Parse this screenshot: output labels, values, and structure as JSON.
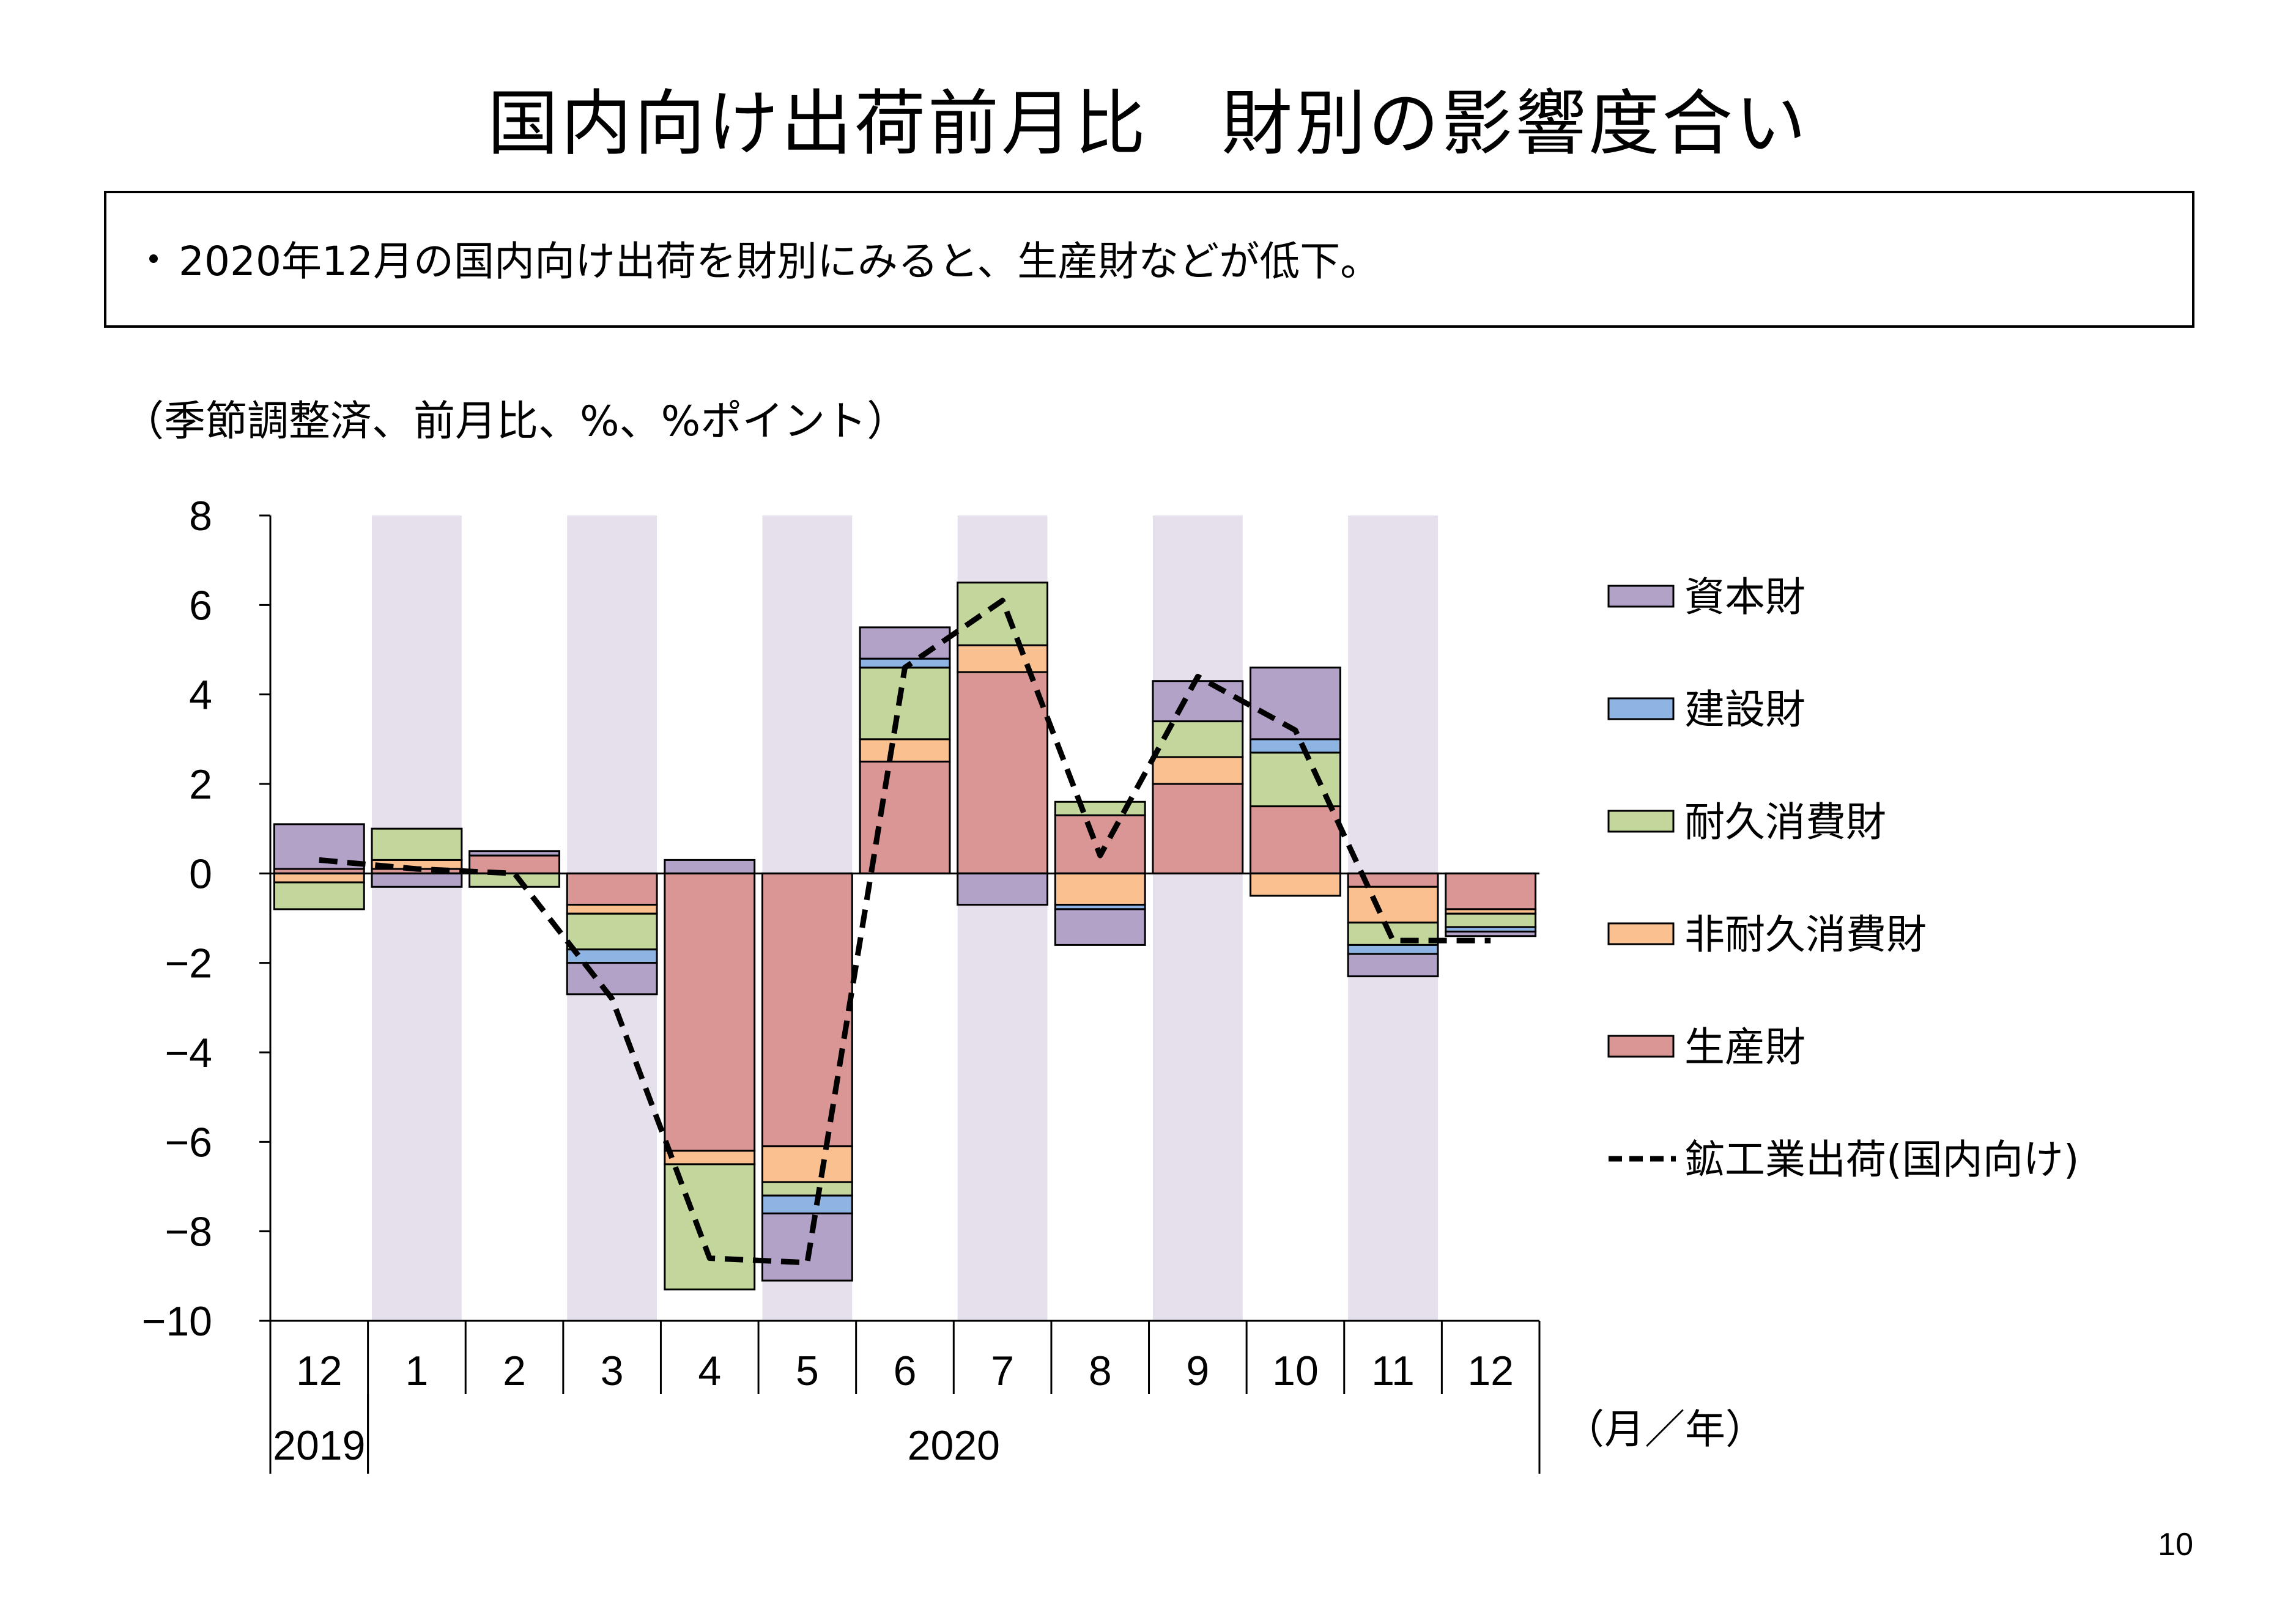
{
  "title": "国内向け出荷前月比　財別の影響度合い",
  "summary": {
    "bullet": "・",
    "text": "2020年12月の国内向け出荷を財別にみると、生産財などが低下。"
  },
  "units_note": "（季節調整済、前月比、%、%ポイント）",
  "page_number": "10",
  "colors": {
    "capital": "#b3a2c7",
    "construction": "#8eb4e3",
    "durable": "#c3d69b",
    "nondurable": "#fac090",
    "producer": "#d99694",
    "shade": "#e6e0ec",
    "line": "#000000"
  },
  "chart_data": {
    "type": "bar",
    "stacked": true,
    "categories": [
      "12",
      "1",
      "2",
      "3",
      "4",
      "5",
      "6",
      "7",
      "8",
      "9",
      "10",
      "11",
      "12"
    ],
    "year_labels": [
      {
        "label": "2019",
        "from": 0,
        "to": 0
      },
      {
        "label": "2020",
        "from": 1,
        "to": 12
      }
    ],
    "x_unit_label": "（月／年）",
    "ylim": [
      -10,
      8
    ],
    "yticks": [
      8,
      6,
      4,
      2,
      0,
      -2,
      -4,
      -6,
      -8,
      -10
    ],
    "shaded_categories": [
      1,
      3,
      5,
      7,
      9,
      11
    ],
    "series": [
      {
        "name": "生産財",
        "key": "producer",
        "values": [
          0.1,
          0.1,
          0.4,
          -0.7,
          -6.2,
          -6.1,
          2.5,
          4.5,
          1.3,
          2.0,
          1.5,
          -0.3,
          -0.8
        ]
      },
      {
        "name": "非耐久消費財",
        "key": "nondurable",
        "values": [
          -0.2,
          0.2,
          0.0,
          -0.2,
          -0.3,
          -0.8,
          0.5,
          0.6,
          -0.7,
          0.6,
          -0.5,
          -0.8,
          -0.1
        ]
      },
      {
        "name": "耐久消費財",
        "key": "durable",
        "values": [
          -0.6,
          0.7,
          -0.3,
          -0.8,
          -2.8,
          -0.3,
          1.6,
          1.4,
          0.3,
          0.8,
          1.2,
          -0.5,
          -0.3
        ]
      },
      {
        "name": "建設財",
        "key": "construction",
        "values": [
          0.0,
          0.0,
          0.0,
          -0.3,
          0.0,
          -0.4,
          0.2,
          0.0,
          -0.1,
          0.0,
          0.3,
          -0.2,
          -0.1
        ]
      },
      {
        "name": "資本財",
        "key": "capital",
        "values": [
          1.0,
          -0.3,
          0.1,
          -0.7,
          0.3,
          -1.5,
          0.7,
          -0.7,
          -0.8,
          0.9,
          1.6,
          -0.5,
          -0.1
        ]
      }
    ],
    "line_series": {
      "name": "鉱工業出荷(国内向け)",
      "values": [
        0.3,
        0.1,
        0.0,
        -2.8,
        -8.6,
        -8.7,
        4.6,
        6.1,
        0.4,
        4.4,
        3.2,
        -1.5,
        -1.5
      ]
    },
    "legend": [
      {
        "key": "capital",
        "label": "資本財"
      },
      {
        "key": "construction",
        "label": "建設財"
      },
      {
        "key": "durable",
        "label": "耐久消費財"
      },
      {
        "key": "nondurable",
        "label": "非耐久消費財"
      },
      {
        "key": "producer",
        "label": "生産財"
      },
      {
        "key": "line",
        "label": "鉱工業出荷(国内向け)"
      }
    ],
    "legend_position": "right"
  }
}
